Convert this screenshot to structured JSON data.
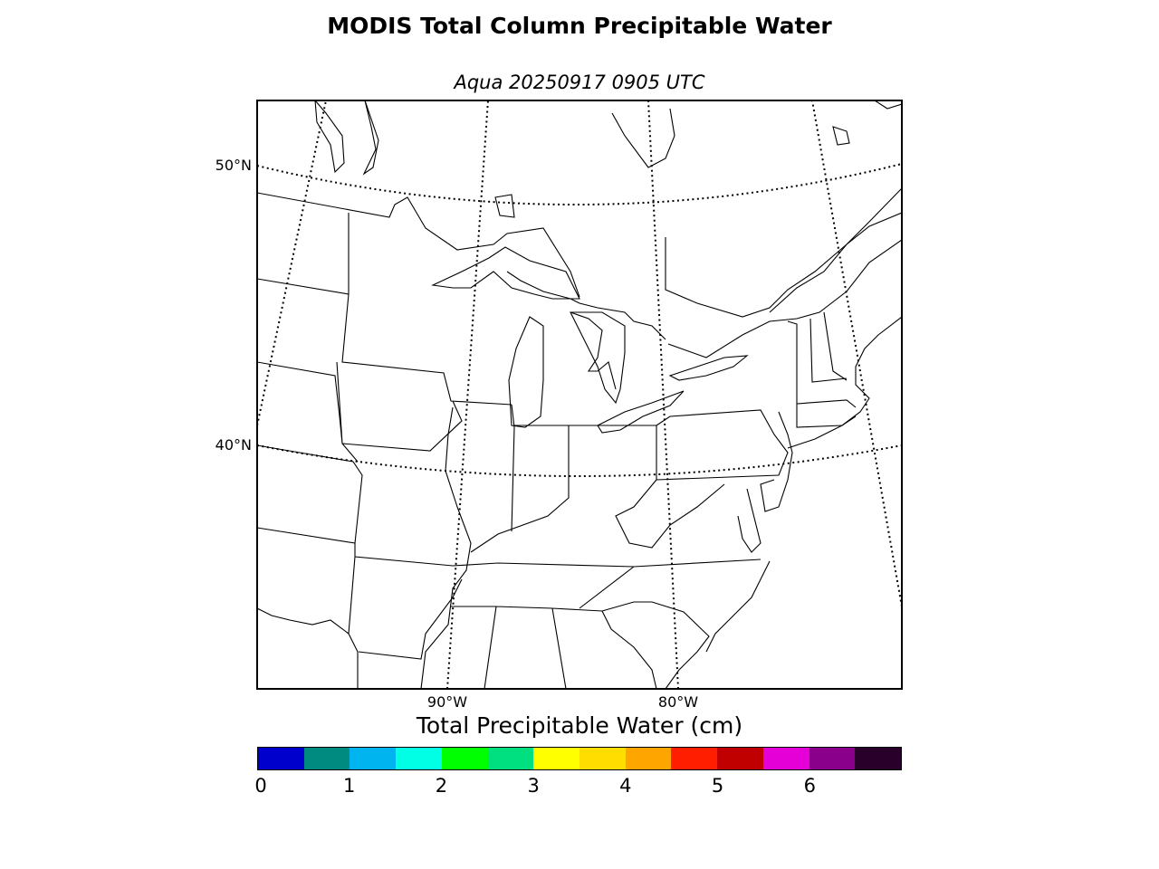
{
  "title": "MODIS Total Column Precipitable Water",
  "subtitle": "Aqua 20250917 0905 UTC",
  "map": {
    "lat_labels": [
      "50°N",
      "40°N"
    ],
    "lon_labels": [
      "90°W",
      "80°W"
    ]
  },
  "colorbar": {
    "title": "Total Precipitable Water (cm)",
    "colors": [
      "#0000cd",
      "#008b80",
      "#00b4f0",
      "#00ffe4",
      "#00ff00",
      "#00e080",
      "#ffff00",
      "#ffdd00",
      "#ffa500",
      "#ff1e00",
      "#c00000",
      "#e600d8",
      "#8b008b",
      "#28002a"
    ],
    "ticks": [
      "0",
      "1",
      "2",
      "3",
      "4",
      "5",
      "6"
    ]
  }
}
